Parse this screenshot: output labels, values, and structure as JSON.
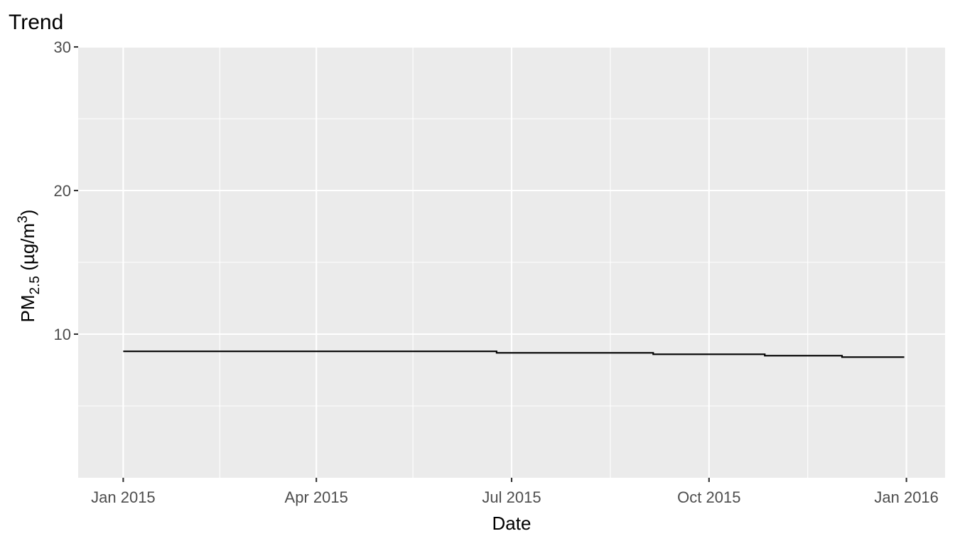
{
  "chart_data": {
    "type": "line",
    "title": "Trend",
    "xlabel": "Date",
    "ylabel": {
      "base": "PM",
      "subscript": "2.5",
      "unit_open": " (µg/m",
      "superscript": "3",
      "unit_close": ")"
    },
    "xlim": [
      "2014-12-11",
      "2016-01-19"
    ],
    "ylim": [
      0,
      30
    ],
    "x_ticks": [
      {
        "date": "2015-01-01",
        "label": "Jan 2015"
      },
      {
        "date": "2015-04-01",
        "label": "Apr 2015"
      },
      {
        "date": "2015-07-01",
        "label": "Jul 2015"
      },
      {
        "date": "2015-10-01",
        "label": "Oct 2015"
      },
      {
        "date": "2016-01-01",
        "label": "Jan 2016"
      }
    ],
    "x_minor_ticks": [
      "2015-02-15",
      "2015-05-16",
      "2015-08-16",
      "2015-11-16"
    ],
    "y_ticks": [
      {
        "value": 10,
        "label": "10"
      },
      {
        "value": 20,
        "label": "20"
      },
      {
        "value": 30,
        "label": "30"
      }
    ],
    "y_minor_ticks": [
      5,
      15,
      25
    ],
    "grid": true,
    "legend": "none",
    "series": [
      {
        "color": "#000000",
        "step": true,
        "points": [
          {
            "x": "2015-01-01",
            "y": 8.8
          },
          {
            "x": "2015-06-24",
            "y": 8.7
          },
          {
            "x": "2015-09-05",
            "y": 8.6
          },
          {
            "x": "2015-10-27",
            "y": 8.5
          },
          {
            "x": "2015-12-02",
            "y": 8.4
          },
          {
            "x": "2015-12-31",
            "y": 8.4
          }
        ]
      }
    ]
  }
}
